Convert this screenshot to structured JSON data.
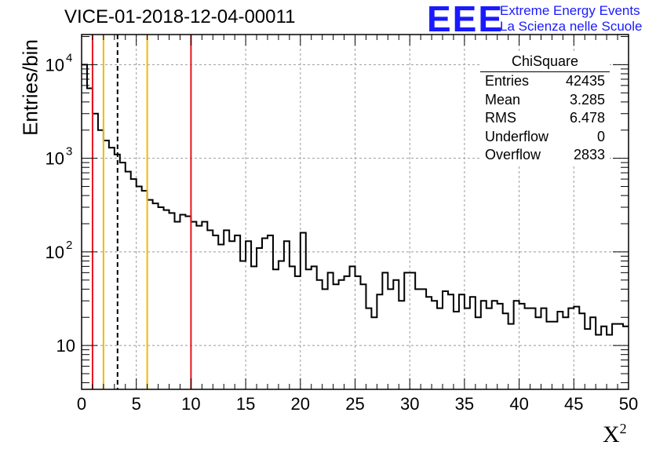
{
  "header": {
    "title": "VICE-01-2018-12-04-00011",
    "logo_text": "EEE",
    "logo_line1": "Extreme Energy Events",
    "logo_line2": "La Scienza nelle Scuole"
  },
  "stats_box": {
    "title": "ChiSquare",
    "rows": [
      {
        "label": "Entries",
        "value": "42435"
      },
      {
        "label": "Mean",
        "value": "3.285"
      },
      {
        "label": "RMS",
        "value": "6.478"
      },
      {
        "label": "Underflow",
        "value": "0"
      },
      {
        "label": "Overflow",
        "value": "2833"
      }
    ]
  },
  "chart_data": {
    "type": "histogram",
    "title": "VICE-01-2018-12-04-00011",
    "xlabel": "X",
    "xlabel_sup": "2",
    "ylabel": "Entries/bin",
    "xlim": [
      0,
      50
    ],
    "ylim": [
      3.4,
      21000
    ],
    "yscale": "log",
    "grid": true,
    "bin_width": 0.5,
    "x_ticks": [
      "0",
      "5",
      "10",
      "15",
      "20",
      "25",
      "30",
      "35",
      "40",
      "45",
      "50"
    ],
    "y_ticks": [
      {
        "value": 10,
        "label": "10"
      },
      {
        "value": 100,
        "label": "10",
        "exp": "2"
      },
      {
        "value": 1000,
        "label": "10",
        "exp": "3"
      },
      {
        "value": 10000,
        "label": "10",
        "exp": "4"
      }
    ],
    "bin_values": [
      10000,
      5600,
      3000,
      2000,
      1550,
      1300,
      1100,
      900,
      720,
      600,
      500,
      450,
      360,
      330,
      300,
      280,
      260,
      210,
      250,
      240,
      210,
      190,
      210,
      170,
      150,
      120,
      170,
      130,
      150,
      80,
      130,
      70,
      110,
      140,
      150,
      65,
      80,
      130,
      70,
      55,
      160,
      65,
      70,
      50,
      40,
      60,
      45,
      50,
      55,
      70,
      55,
      45,
      25,
      20,
      35,
      60,
      40,
      50,
      30,
      60,
      60,
      40,
      40,
      33,
      30,
      25,
      38,
      35,
      23,
      35,
      25,
      33,
      20,
      30,
      25,
      30,
      28,
      22,
      17,
      30,
      28,
      25,
      25,
      20,
      25,
      18,
      18,
      23,
      20,
      25,
      26,
      22,
      15,
      20,
      13,
      16,
      13,
      17,
      17,
      16
    ],
    "vertical_lines": [
      {
        "x": 1.0,
        "color": "#e8141e",
        "style": "solid"
      },
      {
        "x": 2.0,
        "color": "#f5b800",
        "style": "solid"
      },
      {
        "x": 3.285,
        "color": "#000000",
        "style": "dashed"
      },
      {
        "x": 6.0,
        "color": "#f5b800",
        "style": "solid"
      },
      {
        "x": 10.0,
        "color": "#e8141e",
        "style": "solid"
      }
    ]
  }
}
